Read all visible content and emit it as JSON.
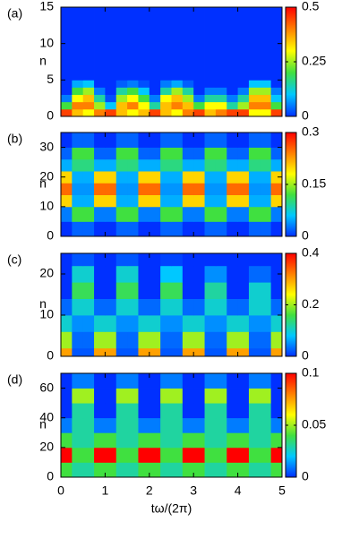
{
  "chart_data": [
    {
      "type": "heatmap",
      "label": "(a)",
      "ylabel": "n",
      "xbins": [
        0,
        0.25,
        0.5,
        0.75,
        1,
        1.25,
        1.5,
        1.75,
        2,
        2.25,
        2.5,
        2.75,
        3,
        3.25,
        3.5,
        3.75,
        4,
        4.25,
        4.5,
        4.75,
        5
      ],
      "ybins": [
        0,
        1,
        2,
        3,
        4,
        5,
        15
      ],
      "ylim": [
        0,
        15
      ],
      "yticks": [
        0,
        5,
        10,
        15
      ],
      "zlim": [
        0,
        0.5
      ],
      "zticks": [
        0,
        0.25,
        0.5
      ],
      "colormap": [
        "#0030ff",
        "#00c8ff",
        "#40e040",
        "#ffff00",
        "#ff8000",
        "#ff0000"
      ],
      "z": [
        [
          0.45,
          0.35,
          0.3,
          0.4,
          0.45,
          0.35,
          0.3,
          0.35,
          0.45,
          0.35,
          0.3,
          0.4,
          0.45,
          0.35,
          0.4,
          0.45,
          0.45,
          0.3,
          0.3,
          0.45
        ],
        [
          0.2,
          0.4,
          0.4,
          0.25,
          0.1,
          0.35,
          0.4,
          0.3,
          0.15,
          0.35,
          0.4,
          0.35,
          0.2,
          0.3,
          0.3,
          0.15,
          0.25,
          0.4,
          0.4,
          0.2
        ],
        [
          0.05,
          0.3,
          0.35,
          0.15,
          0.02,
          0.25,
          0.3,
          0.2,
          0.05,
          0.3,
          0.35,
          0.25,
          0.05,
          0.15,
          0.15,
          0.05,
          0.15,
          0.35,
          0.35,
          0.1
        ],
        [
          0,
          0.2,
          0.25,
          0.05,
          0,
          0.15,
          0.2,
          0.1,
          0,
          0.15,
          0.25,
          0.15,
          0,
          0.05,
          0.05,
          0,
          0.05,
          0.25,
          0.25,
          0.05
        ],
        [
          0,
          0.08,
          0.1,
          0,
          0,
          0.03,
          0.05,
          0.02,
          0,
          0.05,
          0.08,
          0.03,
          0,
          0,
          0,
          0,
          0,
          0.1,
          0.1,
          0
        ],
        [
          0,
          0,
          0,
          0,
          0,
          0,
          0,
          0,
          0,
          0,
          0,
          0,
          0,
          0,
          0,
          0,
          0,
          0,
          0,
          0
        ]
      ]
    },
    {
      "type": "heatmap",
      "label": "(b)",
      "ylabel": "n",
      "xbins": [
        0,
        0.25,
        0.5,
        0.75,
        1,
        1.25,
        1.5,
        1.75,
        2,
        2.25,
        2.5,
        2.75,
        3,
        3.25,
        3.5,
        3.75,
        4,
        4.25,
        4.5,
        4.75,
        5
      ],
      "ybins": [
        0,
        5,
        10,
        14,
        18,
        22,
        26,
        30,
        35
      ],
      "ylim": [
        0,
        35
      ],
      "yticks": [
        0,
        10,
        20,
        30
      ],
      "zlim": [
        0,
        0.3
      ],
      "zticks": [
        0,
        0.15,
        0.3
      ],
      "colormap": [
        "#0030ff",
        "#00c8ff",
        "#40e040",
        "#ffff00",
        "#ff8000",
        "#ff0000"
      ],
      "z": [
        [
          0,
          0.02,
          0.02,
          0,
          0,
          0.02,
          0.02,
          0,
          0,
          0.02,
          0.02,
          0,
          0,
          0.02,
          0.02,
          0,
          0,
          0.02,
          0.02,
          0
        ],
        [
          0.03,
          0.12,
          0.12,
          0.03,
          0.03,
          0.12,
          0.12,
          0.03,
          0.03,
          0.12,
          0.12,
          0.03,
          0.03,
          0.12,
          0.12,
          0.03,
          0.03,
          0.12,
          0.12,
          0.03
        ],
        [
          0.2,
          0.05,
          0.05,
          0.2,
          0.2,
          0.05,
          0.05,
          0.2,
          0.2,
          0.05,
          0.05,
          0.2,
          0.2,
          0.05,
          0.05,
          0.2,
          0.2,
          0.05,
          0.05,
          0.2
        ],
        [
          0.25,
          0.04,
          0.04,
          0.25,
          0.25,
          0.04,
          0.04,
          0.25,
          0.25,
          0.04,
          0.04,
          0.25,
          0.25,
          0.04,
          0.04,
          0.25,
          0.25,
          0.04,
          0.04,
          0.25
        ],
        [
          0.2,
          0.05,
          0.05,
          0.2,
          0.2,
          0.05,
          0.05,
          0.2,
          0.2,
          0.05,
          0.05,
          0.2,
          0.2,
          0.05,
          0.05,
          0.2,
          0.2,
          0.05,
          0.05,
          0.2
        ],
        [
          0.05,
          0.1,
          0.1,
          0.05,
          0.05,
          0.1,
          0.1,
          0.05,
          0.05,
          0.1,
          0.1,
          0.05,
          0.05,
          0.1,
          0.1,
          0.05,
          0.05,
          0.1,
          0.1,
          0.05
        ],
        [
          0.02,
          0.12,
          0.12,
          0.02,
          0.02,
          0.12,
          0.12,
          0.02,
          0.02,
          0.12,
          0.12,
          0.02,
          0.02,
          0.12,
          0.12,
          0.02,
          0.02,
          0.12,
          0.12,
          0.02
        ],
        [
          0,
          0.02,
          0.02,
          0,
          0,
          0.02,
          0.02,
          0,
          0,
          0.02,
          0.02,
          0,
          0,
          0.02,
          0.02,
          0,
          0,
          0.02,
          0.02,
          0
        ]
      ]
    },
    {
      "type": "heatmap",
      "label": "(c)",
      "ylabel": "n",
      "xbins": [
        0,
        0.25,
        0.5,
        0.75,
        1,
        1.25,
        1.5,
        1.75,
        2,
        2.25,
        2.5,
        2.75,
        3,
        3.25,
        3.5,
        3.75,
        4,
        4.25,
        4.5,
        4.75,
        5
      ],
      "ybins": [
        0,
        2,
        6,
        10,
        14,
        18,
        22,
        25
      ],
      "ylim": [
        0,
        25
      ],
      "yticks": [
        0,
        10,
        20
      ],
      "zlim": [
        0,
        0.4
      ],
      "zticks": [
        0,
        0.2,
        0.4
      ],
      "colormap": [
        "#0030ff",
        "#00c8ff",
        "#40e040",
        "#ffff00",
        "#ff8000",
        "#ff0000"
      ],
      "z": [
        [
          0.3,
          0.02,
          0.02,
          0.3,
          0.3,
          0.02,
          0.02,
          0.3,
          0.3,
          0.02,
          0.02,
          0.3,
          0.3,
          0.02,
          0.02,
          0.3,
          0.3,
          0.02,
          0.02,
          0.3
        ],
        [
          0.2,
          0.03,
          0.03,
          0.2,
          0.2,
          0.03,
          0.03,
          0.2,
          0.2,
          0.03,
          0.03,
          0.2,
          0.2,
          0.03,
          0.03,
          0.2,
          0.2,
          0.03,
          0.03,
          0.2
        ],
        [
          0.1,
          0.05,
          0.05,
          0.1,
          0.1,
          0.05,
          0.05,
          0.1,
          0.1,
          0.05,
          0.05,
          0.1,
          0.1,
          0.05,
          0.05,
          0.1,
          0.1,
          0.05,
          0.05,
          0.1
        ],
        [
          0.03,
          0.1,
          0.1,
          0.03,
          0.03,
          0.1,
          0.1,
          0.03,
          0.03,
          0.1,
          0.1,
          0.03,
          0.03,
          0.1,
          0.1,
          0.03,
          0.03,
          0.1,
          0.1,
          0.03
        ],
        [
          0,
          0.15,
          0.15,
          0,
          0,
          0.15,
          0.15,
          0,
          0,
          0.15,
          0.15,
          0,
          0,
          0.12,
          0.12,
          0,
          0,
          0.1,
          0.1,
          0
        ],
        [
          0,
          0.1,
          0.1,
          0,
          0,
          0.1,
          0.1,
          0,
          0,
          0.08,
          0.08,
          0,
          0,
          0.05,
          0.05,
          0,
          0,
          0.03,
          0.03,
          0
        ],
        [
          0,
          0.02,
          0.02,
          0,
          0,
          0.02,
          0.02,
          0,
          0,
          0.01,
          0.01,
          0,
          0,
          0,
          0,
          0,
          0,
          0,
          0,
          0
        ]
      ]
    },
    {
      "type": "heatmap",
      "label": "(d)",
      "ylabel": "n",
      "xlabel": "tω/(2π)",
      "xbins": [
        0,
        0.25,
        0.5,
        0.75,
        1,
        1.25,
        1.5,
        1.75,
        2,
        2.25,
        2.5,
        2.75,
        3,
        3.25,
        3.5,
        3.75,
        4,
        4.25,
        4.5,
        4.75,
        5
      ],
      "xlim": [
        0,
        5
      ],
      "xticks": [
        0,
        1,
        2,
        3,
        4,
        5
      ],
      "ybins": [
        0,
        10,
        20,
        30,
        40,
        50,
        60,
        70
      ],
      "ylim": [
        0,
        70
      ],
      "yticks": [
        0,
        20,
        40,
        60
      ],
      "zlim": [
        0,
        0.1
      ],
      "zticks": [
        0,
        0.05,
        0.1
      ],
      "colormap": [
        "#0030ff",
        "#00c8ff",
        "#40e040",
        "#ffff00",
        "#ff8000",
        "#ff0000"
      ],
      "z": [
        [
          0.04,
          0.03,
          0.03,
          0.04,
          0.04,
          0.03,
          0.03,
          0.04,
          0.04,
          0.03,
          0.03,
          0.04,
          0.04,
          0.03,
          0.03,
          0.04,
          0.04,
          0.03,
          0.03,
          0.04
        ],
        [
          0.1,
          0.04,
          0.04,
          0.1,
          0.1,
          0.04,
          0.04,
          0.1,
          0.1,
          0.04,
          0.04,
          0.1,
          0.1,
          0.04,
          0.04,
          0.1,
          0.1,
          0.04,
          0.04,
          0.1
        ],
        [
          0.04,
          0.03,
          0.03,
          0.04,
          0.04,
          0.03,
          0.03,
          0.04,
          0.04,
          0.03,
          0.03,
          0.04,
          0.04,
          0.03,
          0.03,
          0.04,
          0.04,
          0.03,
          0.03,
          0.04
        ],
        [
          0.01,
          0.03,
          0.03,
          0.01,
          0.01,
          0.03,
          0.03,
          0.01,
          0.01,
          0.03,
          0.03,
          0.01,
          0.01,
          0.03,
          0.03,
          0.01,
          0.01,
          0.03,
          0.03,
          0.01
        ],
        [
          0,
          0.03,
          0.03,
          0,
          0,
          0.03,
          0.03,
          0,
          0,
          0.03,
          0.03,
          0,
          0,
          0.03,
          0.03,
          0,
          0,
          0.03,
          0.03,
          0
        ],
        [
          0,
          0.05,
          0.05,
          0,
          0,
          0.05,
          0.05,
          0,
          0,
          0.05,
          0.05,
          0,
          0,
          0.05,
          0.05,
          0,
          0,
          0.05,
          0.05,
          0
        ],
        [
          0,
          0.01,
          0.01,
          0,
          0,
          0.01,
          0.01,
          0,
          0,
          0.01,
          0.01,
          0,
          0,
          0.01,
          0.01,
          0,
          0,
          0.01,
          0.01,
          0
        ]
      ]
    }
  ]
}
